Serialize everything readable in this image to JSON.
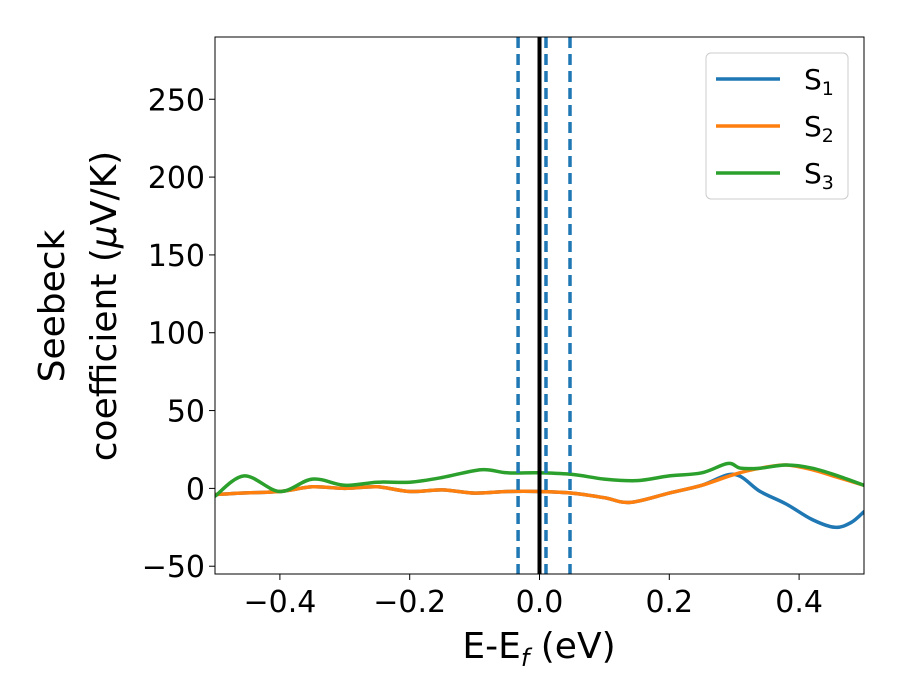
{
  "chart_data": {
    "type": "line",
    "xlabel": "E-E",
    "xlabel_sub": "f",
    "xlabel_unit": " (eV)",
    "ylabel_line1": "Seebeck",
    "ylabel_line2": "coefficient  (",
    "ylabel_mu": "μ",
    "ylabel_unit": "V/K)",
    "xlim": [
      -0.5,
      0.5
    ],
    "ylim": [
      -55,
      290
    ],
    "xticks": [
      -0.4,
      -0.2,
      0.0,
      0.2,
      0.4
    ],
    "xtick_labels": [
      "−0.4",
      "−0.2",
      "0.0",
      "0.2",
      "0.4"
    ],
    "yticks": [
      -50,
      0,
      50,
      100,
      150,
      200,
      250
    ],
    "ytick_labels": [
      "−50",
      "0",
      "50",
      "100",
      "150",
      "200",
      "250"
    ],
    "legend_position": "top-right",
    "fermi_line": {
      "x": 0.0,
      "color": "#000000"
    },
    "dashed_lines": {
      "x": [
        -0.033,
        0.01,
        0.047
      ],
      "color": "#1f77b4"
    },
    "series": [
      {
        "name": "S",
        "name_sub": "1",
        "color": "#1f77b4",
        "x": [
          -0.5,
          -0.46,
          -0.4,
          -0.35,
          -0.3,
          -0.25,
          -0.2,
          -0.15,
          -0.1,
          -0.05,
          0.0,
          0.05,
          0.1,
          0.14,
          0.2,
          0.25,
          0.3,
          0.34,
          0.38,
          0.42,
          0.455,
          0.48,
          0.5
        ],
        "values": [
          -4,
          -3,
          -2,
          1,
          0,
          1,
          -2,
          -1,
          -3,
          -2,
          -2,
          -3,
          -6,
          -9,
          -3,
          2,
          9,
          -2,
          -10,
          -20,
          -25,
          -22,
          -15
        ]
      },
      {
        "name": "S",
        "name_sub": "2",
        "color": "#ff7f0e",
        "x": [
          -0.5,
          -0.46,
          -0.4,
          -0.35,
          -0.3,
          -0.25,
          -0.2,
          -0.15,
          -0.1,
          -0.05,
          0.0,
          0.05,
          0.1,
          0.14,
          0.2,
          0.25,
          0.3,
          0.34,
          0.38,
          0.42,
          0.46,
          0.5
        ],
        "values": [
          -4,
          -3,
          -2,
          1,
          0,
          1,
          -2,
          -1,
          -3,
          -2,
          -2,
          -3,
          -6,
          -9,
          -3,
          2,
          9,
          13,
          15,
          12,
          7,
          2
        ]
      },
      {
        "name": "S",
        "name_sub": "3",
        "color": "#2ca02c",
        "x": [
          -0.5,
          -0.455,
          -0.4,
          -0.35,
          -0.3,
          -0.25,
          -0.2,
          -0.15,
          -0.09,
          -0.05,
          0.0,
          0.05,
          0.1,
          0.15,
          0.2,
          0.25,
          0.29,
          0.31,
          0.34,
          0.38,
          0.42,
          0.46,
          0.5
        ],
        "values": [
          -5,
          8,
          -2,
          6,
          2,
          4,
          4,
          7,
          12,
          10,
          10,
          9,
          6,
          5,
          8,
          10,
          16,
          13,
          13,
          15,
          13,
          8,
          2
        ]
      }
    ]
  }
}
